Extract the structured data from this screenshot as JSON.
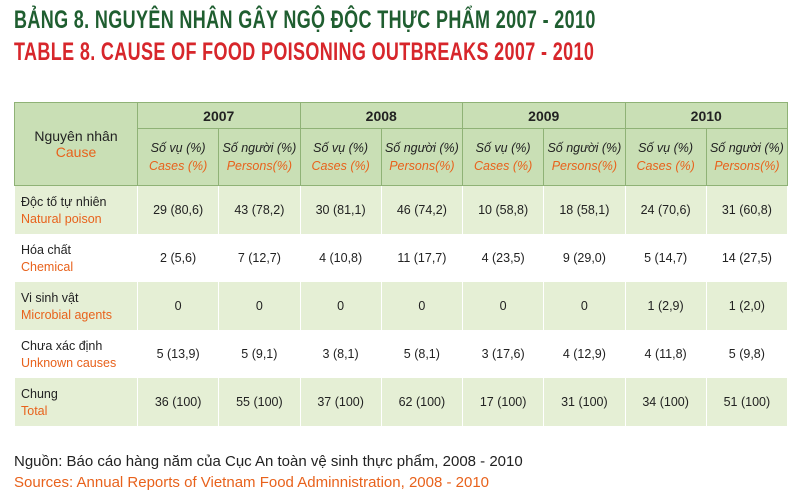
{
  "header": {
    "title_vi": "BẢNG 8. NGUYÊN NHÂN GÂY NGỘ ĐỘC THỰC PHẨM 2007 - 2010",
    "title_en": "TABLE 8. CAUSE OF FOOD POISONING OUTBREAKS 2007 - 2010"
  },
  "table": {
    "cause_header": {
      "vi": "Nguyên nhân",
      "en": "Cause"
    },
    "years": [
      "2007",
      "2008",
      "2009",
      "2010"
    ],
    "subheaders": [
      {
        "vi": "Số vụ (%)",
        "en": "Cases (%)"
      },
      {
        "vi": "Số người (%)",
        "en": "Persons(%)"
      }
    ],
    "rows": [
      {
        "vi": "Độc tố tự nhiên",
        "en": "Natural poison",
        "cells": [
          "29 (80,6)",
          "43 (78,2)",
          "30 (81,1)",
          "46 (74,2)",
          "10 (58,8)",
          "18 (58,1)",
          "24 (70,6)",
          "31 (60,8)"
        ]
      },
      {
        "vi": "Hóa chất",
        "en": "Chemical",
        "cells": [
          "2 (5,6)",
          "7 (12,7)",
          "4 (10,8)",
          "11 (17,7)",
          "4 (23,5)",
          "9 (29,0)",
          "5 (14,7)",
          "14 (27,5)"
        ]
      },
      {
        "vi": "Vi sinh vật",
        "en": "Microbial agents",
        "cells": [
          "0",
          "0",
          "0",
          "0",
          "0",
          "0",
          "1 (2,9)",
          "1 (2,0)"
        ]
      },
      {
        "vi": "Chưa xác định",
        "en": "Unknown causes",
        "cells": [
          "5 (13,9)",
          "5 (9,1)",
          "3 (8,1)",
          "5 (8,1)",
          "3 (17,6)",
          "4 (12,9)",
          "4 (11,8)",
          "5 (9,8)"
        ]
      },
      {
        "vi": "Chung",
        "en": "Total",
        "cells": [
          "36 (100)",
          "55 (100)",
          "37 (100)",
          "62 (100)",
          "17 (100)",
          "31 (100)",
          "34 (100)",
          "51 (100)"
        ]
      }
    ]
  },
  "source": {
    "vi": "Nguồn: Báo cáo hàng năm của Cục An toàn vệ sinh thực phẩm, 2008 - 2010",
    "en": "Sources: Annual Reports of Vietnam Food Adminnistration, 2008 - 2010"
  }
}
